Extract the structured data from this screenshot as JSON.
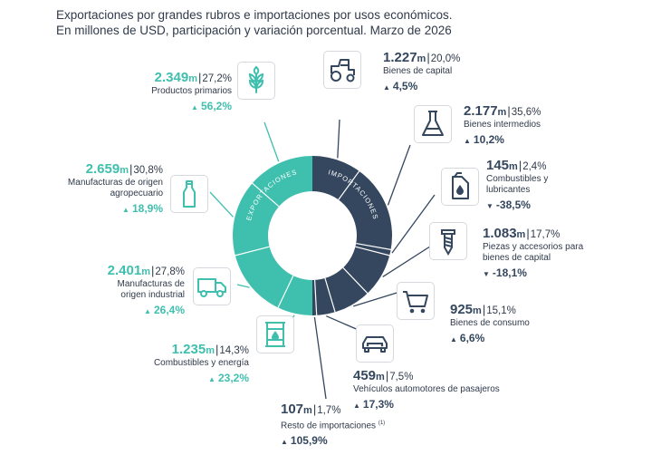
{
  "title_line1": "Exportaciones por grandes rubros e importaciones por usos económicos.",
  "title_line2": "En millones de USD, participación y variación porcentual. Marzo de 2026",
  "ring_label_exports": "EXPORTACIONES",
  "ring_label_imports": "IMPORTACIONES",
  "unit": "m",
  "colors": {
    "exports": "#3fbfae",
    "imports": "#34475e",
    "divider": "#ffffff"
  },
  "chart_data": {
    "type": "donut",
    "title": "Exportaciones por grandes rubros e importaciones por usos económicos. En millones de USD, participación y variación porcentual. Marzo de 2026",
    "series": [
      {
        "name": "Exportaciones",
        "items": [
          {
            "name": "Productos primarios",
            "value": "2.349",
            "share": "27,2%",
            "change": "56,2%",
            "direction": "up",
            "icon": "wheat-icon"
          },
          {
            "name": "Manufacturas de origen agropecuario",
            "value": "2.659",
            "share": "30,8%",
            "change": "18,9%",
            "direction": "up",
            "icon": "bottle-icon"
          },
          {
            "name": "Manufacturas de origen industrial",
            "value": "2.401",
            "share": "27,8%",
            "change": "26,4%",
            "direction": "up",
            "icon": "truck-icon"
          },
          {
            "name": "Combustibles y energía",
            "value": "1.235",
            "share": "14,3%",
            "change": "23,2%",
            "direction": "up",
            "icon": "oil-barrel-icon"
          }
        ]
      },
      {
        "name": "Importaciones",
        "items": [
          {
            "name": "Bienes de capital",
            "value": "1.227",
            "share": "20,0%",
            "change": "4,5%",
            "direction": "up",
            "icon": "tractor-icon"
          },
          {
            "name": "Bienes intermedios",
            "value": "2.177",
            "share": "35,6%",
            "change": "10,2%",
            "direction": "up",
            "icon": "flask-icon"
          },
          {
            "name": "Combustibles y lubricantes",
            "value": "145",
            "share": "2,4%",
            "change": "-38,5%",
            "direction": "down",
            "icon": "fuel-can-icon"
          },
          {
            "name": "Piezas y accesorios para bienes de capital",
            "value": "1.083",
            "share": "17,7%",
            "change": "-18,1%",
            "direction": "down",
            "icon": "screw-icon"
          },
          {
            "name": "Bienes de consumo",
            "value": "925",
            "share": "15,1%",
            "change": "6,6%",
            "direction": "up",
            "icon": "shopping-cart-icon"
          },
          {
            "name": "Vehículos automotores de pasajeros",
            "value": "459",
            "share": "7,5%",
            "change": "17,3%",
            "direction": "up",
            "icon": "car-icon"
          },
          {
            "name": "Resto de importaciones",
            "value": "107",
            "share": "1,7%",
            "change": "105,9%",
            "direction": "up",
            "icon": "",
            "note": "(1)"
          }
        ]
      }
    ]
  }
}
